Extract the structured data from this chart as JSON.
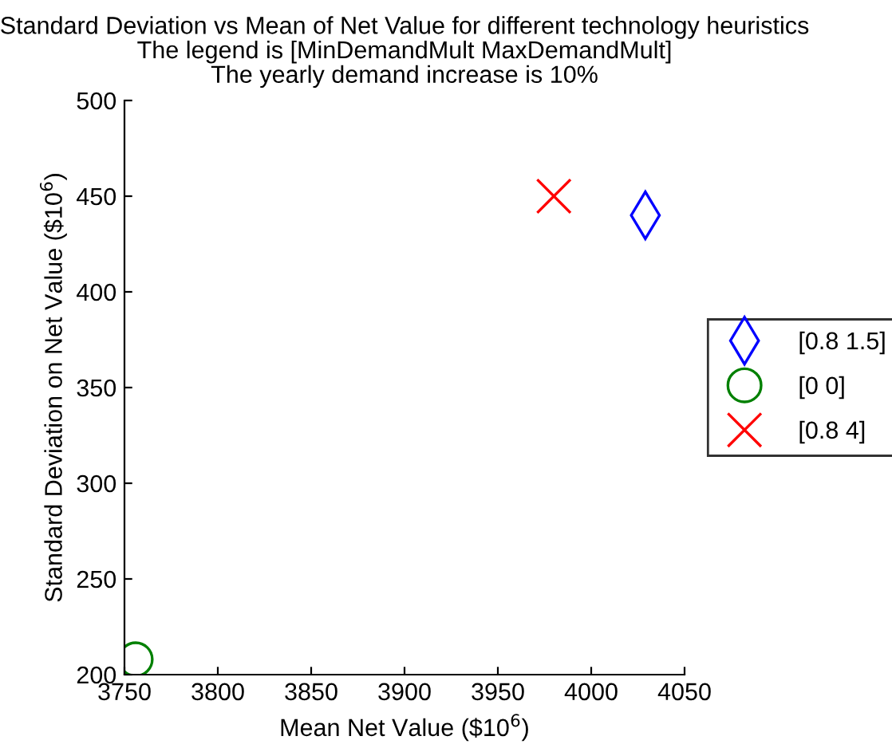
{
  "chart_data": {
    "type": "scatter",
    "title": "Standard Deviation vs Mean of Net Value for different technology heuristics\nThe legend is [MinDemandMult MaxDemandMult]\nThe yearly demand increase is 10%",
    "xlabel": "Mean Net Value ($10$^{6}$)",
    "ylabel": "Standard Deviation on Net Value ($10$^{6}$)",
    "xlim": [
      3750,
      4050
    ],
    "xticks": [
      3750,
      3800,
      3850,
      3900,
      3950,
      4000,
      4050
    ],
    "ylim": [
      200,
      500
    ],
    "yticks": [
      200,
      250,
      300,
      350,
      400,
      450,
      500
    ],
    "grid": false,
    "legend": "right",
    "series": [
      {
        "name": "[0.8 1.5]",
        "color": "#0000ff",
        "marker": "diamond",
        "x": [
          4029
        ],
        "values": [
          440
        ]
      },
      {
        "name": "[0 0]",
        "color": "#008000",
        "marker": "circle",
        "x": [
          3756
        ],
        "values": [
          208
        ]
      },
      {
        "name": "[0.8 4]",
        "color": "#ff0000",
        "marker": "cross",
        "x": [
          3980
        ],
        "values": [
          450
        ]
      }
    ]
  }
}
